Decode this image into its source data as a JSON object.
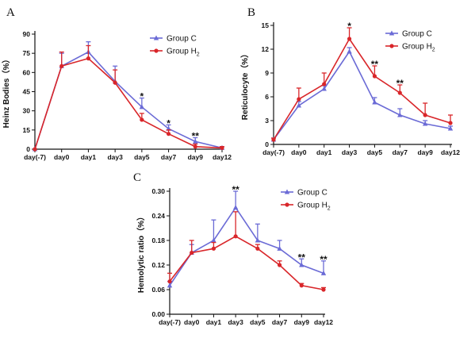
{
  "chart_data": [
    {
      "type": "line",
      "panel": "A",
      "ylabel": "Heinz Bodies（%）",
      "categories": [
        "day(-7)",
        "day0",
        "day1",
        "day3",
        "day5",
        "day7",
        "day9",
        "day12"
      ],
      "ylim": [
        0,
        90
      ],
      "yticks": [
        0,
        15,
        30,
        45,
        60,
        75,
        90
      ],
      "legend_position": "top-right",
      "series": [
        {
          "name": "Group C",
          "name_sub": "",
          "color": "#6b6bd6",
          "marker": "triangle",
          "values": [
            0,
            65,
            76,
            53,
            33,
            16,
            6,
            1
          ],
          "error": [
            0,
            10,
            8,
            12,
            7,
            3,
            3,
            1
          ]
        },
        {
          "name": "Group H",
          "name_sub": "2",
          "color": "#d9262a",
          "marker": "circle",
          "values": [
            0,
            65,
            71,
            52,
            23,
            12,
            2,
            1
          ],
          "error": [
            0,
            11,
            10,
            10,
            5,
            3,
            2,
            1
          ]
        }
      ],
      "significance": [
        {
          "category": "day5",
          "text": "*"
        },
        {
          "category": "day7",
          "text": "*"
        },
        {
          "category": "day9",
          "text": "**"
        }
      ]
    },
    {
      "type": "line",
      "panel": "B",
      "ylabel": "Reticulocyte（%）",
      "categories": [
        "day(-7)",
        "day0",
        "day1",
        "day3",
        "day5",
        "day7",
        "day9",
        "day12"
      ],
      "ylim": [
        0,
        15
      ],
      "yticks": [
        0,
        3,
        6,
        9,
        12,
        15
      ],
      "legend_position": "top-right",
      "series": [
        {
          "name": "Group C",
          "name_sub": "",
          "color": "#6b6bd6",
          "marker": "triangle",
          "values": [
            0.6,
            4.9,
            7.0,
            11.7,
            5.3,
            3.7,
            2.6,
            2.0
          ],
          "error": [
            0.2,
            0.5,
            0.4,
            0.5,
            0.6,
            0.8,
            0.4,
            0.3
          ]
        },
        {
          "name": "Group H",
          "name_sub": "2",
          "color": "#d9262a",
          "marker": "circle",
          "values": [
            0.6,
            5.7,
            7.6,
            13.3,
            8.6,
            6.5,
            3.7,
            2.7
          ],
          "error": [
            0.2,
            1.4,
            1.4,
            1.4,
            1.3,
            1.0,
            1.5,
            1.0
          ]
        }
      ],
      "significance": [
        {
          "category": "day3",
          "text": "*"
        },
        {
          "category": "day5",
          "text": "**"
        },
        {
          "category": "day7",
          "text": "**"
        }
      ]
    },
    {
      "type": "line",
      "panel": "C",
      "ylabel": "Hemolytic ratio（%）",
      "categories": [
        "day(-7)",
        "day0",
        "day1",
        "day3",
        "day5",
        "day7",
        "day9",
        "day12"
      ],
      "ylim": [
        0,
        0.3
      ],
      "yticks": [
        0.0,
        0.06,
        0.12,
        0.18,
        0.24,
        0.3
      ],
      "yticklabels": [
        "0.00",
        "0.06",
        "0.12",
        "0.18",
        "0.24",
        "0.30"
      ],
      "legend_position": "top-right",
      "series": [
        {
          "name": "Group C",
          "name_sub": "",
          "color": "#6b6bd6",
          "marker": "triangle",
          "values": [
            0.07,
            0.15,
            0.18,
            0.26,
            0.18,
            0.16,
            0.12,
            0.1
          ],
          "error": [
            0.01,
            0.02,
            0.05,
            0.04,
            0.04,
            0.02,
            0.015,
            0.03
          ]
        },
        {
          "name": "Group H",
          "name_sub": "2",
          "color": "#d9262a",
          "marker": "circle",
          "values": [
            0.08,
            0.15,
            0.16,
            0.19,
            0.16,
            0.12,
            0.07,
            0.06
          ],
          "error": [
            0.02,
            0.03,
            0.015,
            0.06,
            0.01,
            0.01,
            0.005,
            0.005
          ]
        }
      ],
      "significance": [
        {
          "category": "day3",
          "text": "**"
        },
        {
          "category": "day9",
          "text": "**"
        },
        {
          "category": "day12",
          "text": "**"
        }
      ]
    }
  ]
}
